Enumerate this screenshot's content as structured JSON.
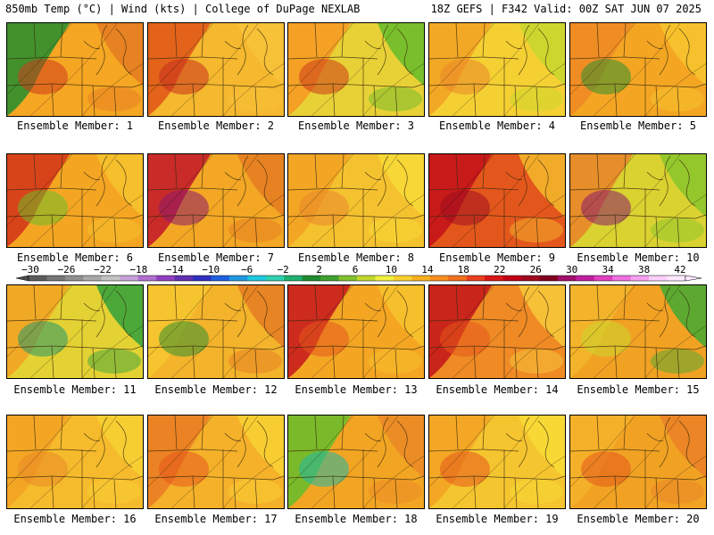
{
  "header": {
    "left": "850mb Temp (°C) | Wind (kts) | College of DuPage NEXLAB",
    "right": "18Z GEFS | F342 Valid: 00Z SAT JUN 07 2025"
  },
  "members": [
    {
      "label": "Ensemble Member: 1",
      "base": "#f5a623",
      "west": "#2f8f2f",
      "east": "#e67e22",
      "blob": "#cf3a1a"
    },
    {
      "label": "Ensemble Member: 2",
      "base": "#f5b82e",
      "west": "#e15a1a",
      "east": "#f7c23a",
      "blob": "#c7301b"
    },
    {
      "label": "Ensemble Member: 3",
      "base": "#e8d136",
      "west": "#f59b23",
      "east": "#6dbb2a",
      "blob": "#cc3b18"
    },
    {
      "label": "Ensemble Member: 4",
      "base": "#f5d033",
      "west": "#f3a324",
      "east": "#c9d62e",
      "blob": "#e8862a"
    },
    {
      "label": "Ensemble Member: 5",
      "base": "#f4a623",
      "west": "#ee8b25",
      "east": "#f6c42e",
      "blob": "#2f8f2f"
    },
    {
      "label": "Ensemble Member: 6",
      "base": "#f4a623",
      "west": "#d53a19",
      "east": "#f6c22e",
      "blob": "#6dbb2a"
    },
    {
      "label": "Ensemble Member: 7",
      "base": "#f3a724",
      "west": "#c41e2a",
      "east": "#e67e22",
      "blob": "#8b1a6a"
    },
    {
      "label": "Ensemble Member: 8",
      "base": "#f5c22f",
      "west": "#f3a324",
      "east": "#f7d936",
      "blob": "#e8862a"
    },
    {
      "label": "Ensemble Member: 9",
      "base": "#e4571c",
      "west": "#c3141a",
      "east": "#f3b52b",
      "blob": "#9e0f20"
    },
    {
      "label": "Ensemble Member: 10",
      "base": "#d9d230",
      "west": "#e8862a",
      "east": "#8cc52c",
      "blob": "#8b1a6a"
    },
    {
      "label": "Ensemble Member: 11",
      "base": "#e4d234",
      "west": "#f1a423",
      "east": "#3aa33a",
      "blob": "#23986a"
    },
    {
      "label": "Ensemble Member: 12",
      "base": "#f3b32b",
      "west": "#f6c52f",
      "east": "#e67e22",
      "blob": "#2f8f2f"
    },
    {
      "label": "Ensemble Member: 13",
      "base": "#f4a623",
      "west": "#c91e1e",
      "east": "#f6c22e",
      "blob": "#e4571c"
    },
    {
      "label": "Ensemble Member: 14",
      "base": "#ef8a25",
      "west": "#c41a1a",
      "east": "#f7c73a",
      "blob": "#e4571c"
    },
    {
      "label": "Ensemble Member: 15",
      "base": "#f1a223",
      "west": "#f3b52b",
      "east": "#4da832",
      "blob": "#c9d62e"
    },
    {
      "label": "Ensemble Member: 16",
      "base": "#f6bb2c",
      "west": "#f3a324",
      "east": "#f7d033",
      "blob": "#ea8a26"
    },
    {
      "label": "Ensemble Member: 17",
      "base": "#f5b12a",
      "west": "#ea7d22",
      "east": "#f7d033",
      "blob": "#e4571c"
    },
    {
      "label": "Ensemble Member: 18",
      "base": "#f2a523",
      "west": "#6dbb2a",
      "east": "#ea8a26",
      "blob": "#1fb8a5"
    },
    {
      "label": "Ensemble Member: 19",
      "base": "#f5c52f",
      "west": "#f3a324",
      "east": "#f7d936",
      "blob": "#e4571c"
    },
    {
      "label": "Ensemble Member: 20",
      "base": "#f1a223",
      "west": "#f5b12a",
      "east": "#ea8226",
      "blob": "#e4571c"
    }
  ],
  "colorbar": {
    "ticks": [
      "−30",
      "−26",
      "−22",
      "−18",
      "−14",
      "−10",
      "−6",
      "−2",
      "2",
      "6",
      "10",
      "14",
      "18",
      "22",
      "26",
      "30",
      "34",
      "38",
      "42"
    ],
    "colors": [
      "#5c5c5c",
      "#767676",
      "#8f8f8f",
      "#a9a9a9",
      "#c4c4c4",
      "#c8a0d8",
      "#b070d0",
      "#9040c0",
      "#6030b0",
      "#3030c0",
      "#2060e0",
      "#2098e0",
      "#20c8e0",
      "#30d0b0",
      "#20b070",
      "#208a30",
      "#40a030",
      "#80c030",
      "#c0d830",
      "#f0f040",
      "#f8d030",
      "#f8b020",
      "#f89020",
      "#f07020",
      "#e84020",
      "#d81818",
      "#c00018",
      "#a00820",
      "#800020",
      "#a0106a",
      "#c020a0",
      "#e040c0",
      "#f070e0",
      "#f8a0f0",
      "#fcd0f8",
      "#ffe8ff"
    ]
  }
}
